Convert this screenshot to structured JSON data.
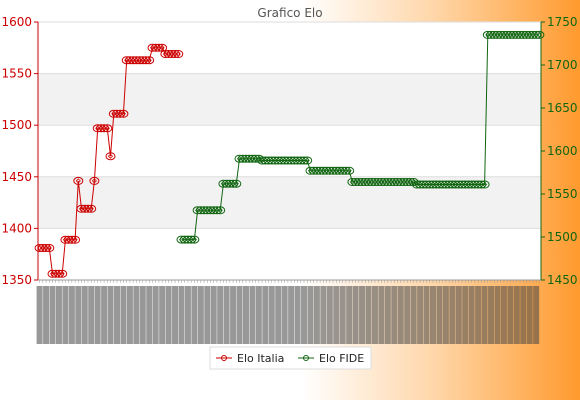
{
  "chart_data": {
    "type": "line",
    "title": "Grafico Elo",
    "y_left": {
      "min": 1350,
      "max": 1600,
      "ticks": [
        1350,
        1400,
        1450,
        1500,
        1550,
        1600
      ],
      "color": "#cc0000"
    },
    "y_right": {
      "min": 1450,
      "max": 1750,
      "ticks": [
        1450,
        1500,
        1550,
        1600,
        1650,
        1700,
        1750
      ],
      "color": "#116611"
    },
    "grid": true,
    "legend_position": "bottom-center",
    "series": [
      {
        "name": "Elo Italia",
        "axis": "left",
        "color": "#cc0000",
        "segments": [
          {
            "n": 4,
            "y": 1381
          },
          {
            "n": 4,
            "y": 1356
          },
          {
            "n": 4,
            "y": 1389
          },
          {
            "n": 1,
            "y": 1446
          },
          {
            "n": 4,
            "y": 1419
          },
          {
            "n": 1,
            "y": 1446
          },
          {
            "n": 4,
            "y": 1497
          },
          {
            "n": 1,
            "y": 1470
          },
          {
            "n": 4,
            "y": 1511
          },
          {
            "n": 8,
            "y": 1563
          },
          {
            "n": 4,
            "y": 1575
          },
          {
            "n": 5,
            "y": 1569
          }
        ]
      },
      {
        "name": "Elo FIDE",
        "axis": "right",
        "color": "#116611",
        "segments": [
          {
            "n": 5,
            "y": 1497
          },
          {
            "n": 8,
            "y": 1531
          },
          {
            "n": 5,
            "y": 1562
          },
          {
            "n": 7,
            "y": 1591
          },
          {
            "n": 15,
            "y": 1589
          },
          {
            "n": 13,
            "y": 1577
          },
          {
            "n": 20,
            "y": 1564
          },
          {
            "n": 22,
            "y": 1561
          },
          {
            "n": 17,
            "y": 1735
          }
        ]
      }
    ]
  }
}
